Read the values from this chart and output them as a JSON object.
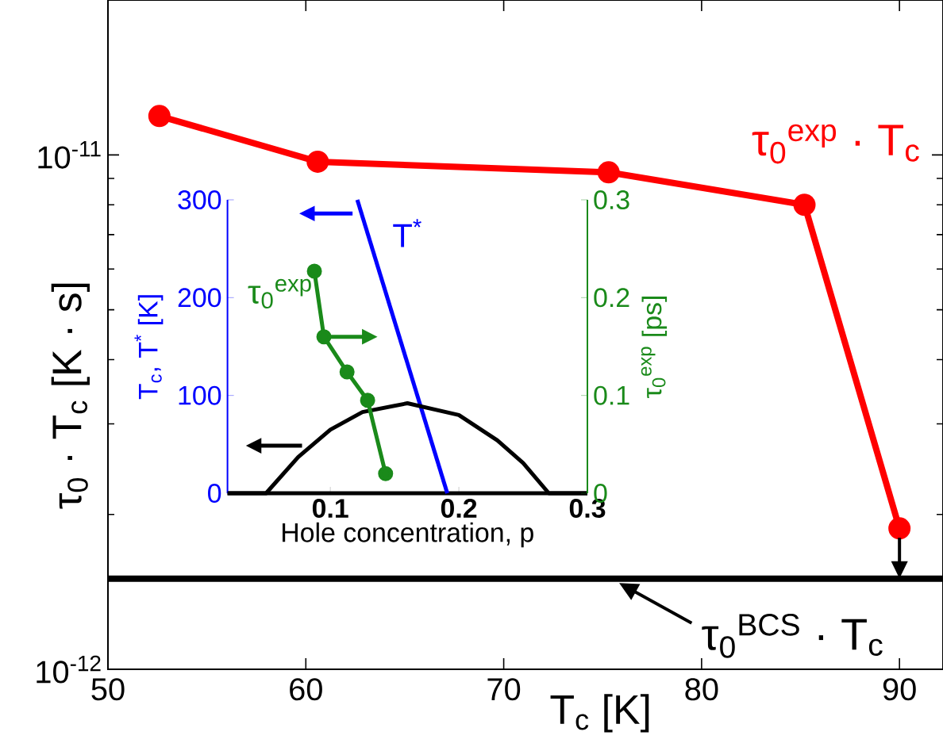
{
  "chart_data": [
    {
      "type": "line",
      "xlabel": "T$_{c}$ [K]",
      "ylabel": "τ$_{0}$ · T$_{c}$ [K · s]",
      "x": [
        52.6,
        60.6,
        75.3,
        85.2,
        90
      ],
      "series": [
        {
          "name": "τ$_{0}$$^{exp}$ · T$_{c}$",
          "color": "#ff0000",
          "values": [
            1.19e-11,
            9.7e-12,
            9.25e-12,
            8e-12,
            1.88e-12
          ]
        }
      ],
      "xlim": [
        50,
        92.2
      ],
      "ylim": [
        1e-12,
        2e-11
      ],
      "xticks": [
        50,
        60,
        70,
        80,
        90
      ],
      "yticks": [
        {
          "value": 1e-12,
          "label": "10$^{-12}$"
        },
        {
          "value": 1e-11,
          "label": "10$^{-11}$"
        }
      ],
      "log": "y",
      "marker": "circle",
      "ref_lines": [
        {
          "axis": "y",
          "value": 1.5e-12,
          "label": "τ$_{0}$$^{BCS}$ · T$_{c}$",
          "color": "#000000"
        }
      ]
    },
    {
      "type": "line",
      "xlabel": "Hole concentration, p",
      "ylabel": "T$_{c}$, T$^{*}$ [K]",
      "y2label": "τ$_{0}$$^{exp}$ [ps]",
      "series": [
        {
          "name": "T$^{*}$",
          "color": "#0000ff",
          "x": [
            0.121,
            0.191
          ],
          "values": [
            300,
            0
          ]
        },
        {
          "color": "#000000",
          "x": [
            0.02,
            0.05,
            0.075,
            0.1,
            0.125,
            0.16,
            0.2,
            0.23,
            0.25,
            0.27,
            0.3
          ],
          "values": [
            0,
            0,
            37,
            65,
            83,
            92,
            80,
            54,
            31,
            0,
            0
          ]
        },
        {
          "name": "τ$_{0}$$^{exp}$",
          "color": "#1a8a1a",
          "axis": "y2",
          "marker": "circle",
          "x": [
            0.0876,
            0.095,
            0.113,
            0.129,
            0.143
          ],
          "values": [
            0.227,
            0.16,
            0.124,
            0.095,
            0.02
          ]
        }
      ],
      "xlim": [
        0.02,
        0.3
      ],
      "ylim": [
        0,
        300
      ],
      "y2lim": [
        0,
        0.3
      ],
      "xticks": [
        0.1,
        0.2,
        0.3
      ],
      "yticks": [
        0,
        100,
        200,
        300
      ],
      "y2ticks": [
        0,
        0.1,
        0.2,
        0.3
      ],
      "marker": "none"
    }
  ]
}
